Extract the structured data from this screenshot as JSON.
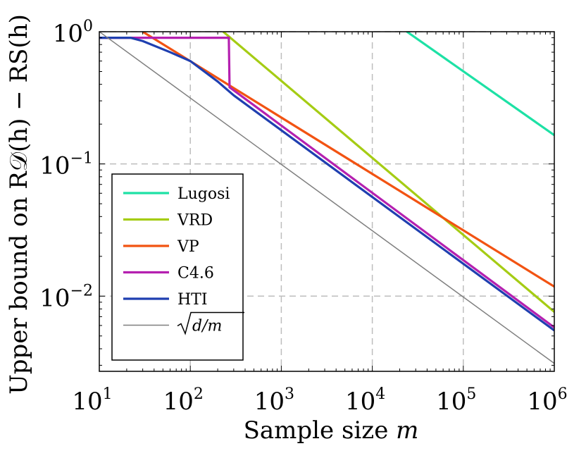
{
  "chart_data": {
    "type": "line",
    "x_scale": "log",
    "y_scale": "log",
    "xlim": [
      10,
      1000000
    ],
    "ylim": [
      0.0027,
      1.0
    ],
    "grid": true,
    "grid_style": "dashed",
    "legend_position": "bottom-left",
    "xlabel_prefix": "Sample size ",
    "xlabel_var": "m",
    "ylabel": "Upper bound on R𝒟(h) − RS(h)",
    "x_ticks": [
      {
        "base": "10",
        "exp": "1",
        "value": 10
      },
      {
        "base": "10",
        "exp": "2",
        "value": 100
      },
      {
        "base": "10",
        "exp": "3",
        "value": 1000
      },
      {
        "base": "10",
        "exp": "4",
        "value": 10000
      },
      {
        "base": "10",
        "exp": "5",
        "value": 100000
      },
      {
        "base": "10",
        "exp": "6",
        "value": 1000000
      }
    ],
    "y_ticks": [
      {
        "base": "10",
        "exp": "0",
        "value": 1
      },
      {
        "base": "10",
        "exp": "−1",
        "value": 0.1
      },
      {
        "base": "10",
        "exp": "−2",
        "value": 0.01
      }
    ],
    "series": [
      {
        "name": "Lugosi",
        "color": "#1de1a5",
        "width": 3.2,
        "points": [
          [
            24000,
            1.0
          ],
          [
            1000000,
            0.165
          ]
        ]
      },
      {
        "name": "VRD",
        "color": "#a5cc14",
        "width": 3.2,
        "points": [
          [
            230,
            1.0
          ],
          [
            1000000,
            0.0076
          ]
        ]
      },
      {
        "name": "VP",
        "color": "#f25312",
        "width": 3.2,
        "points": [
          [
            30,
            1.0
          ],
          [
            1000000,
            0.0118
          ]
        ]
      },
      {
        "name": "C4.6",
        "color": "#b520b0",
        "width": 3.2,
        "points": [
          [
            10,
            0.9
          ],
          [
            265,
            0.9
          ],
          [
            270,
            0.38
          ],
          [
            1000000,
            0.0058
          ]
        ]
      },
      {
        "name": "HTI",
        "color": "#1f3fb0",
        "width": 3.2,
        "points": [
          [
            10,
            0.9
          ],
          [
            22,
            0.9
          ],
          [
            30,
            0.85
          ],
          [
            60,
            0.7
          ],
          [
            100,
            0.6
          ],
          [
            200,
            0.42
          ],
          [
            300,
            0.33
          ],
          [
            1000000,
            0.0055
          ]
        ]
      },
      {
        "name": "√(d/m)",
        "color": "#7f7f7f",
        "width": 1.5,
        "points": [
          [
            10,
            1.0
          ],
          [
            1000000,
            0.0031
          ]
        ]
      }
    ]
  }
}
